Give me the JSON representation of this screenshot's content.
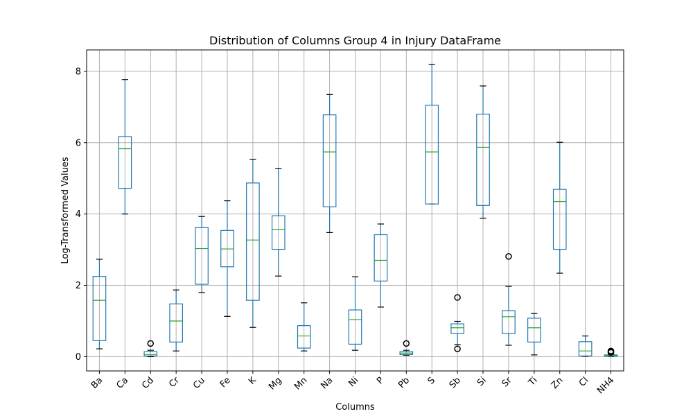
{
  "chart_data": {
    "type": "box",
    "title": "Distribution of Columns Group 4 in Injury DataFrame",
    "xlabel": "Columns",
    "ylabel": "Log-Transformed Values",
    "ylim": [
      -0.4,
      8.6
    ],
    "yticks": [
      0,
      2,
      4,
      6,
      8
    ],
    "grid": true,
    "categories": [
      "Ba",
      "Ca",
      "Cd",
      "Cr",
      "Cu",
      "Fe",
      "K",
      "Mg",
      "Mn",
      "Na",
      "Ni",
      "P",
      "Pb",
      "S",
      "Sb",
      "Si",
      "Sr",
      "Ti",
      "Zn",
      "Cl",
      "NH4"
    ],
    "boxes": [
      {
        "min": 0.22,
        "q1": 0.45,
        "median": 1.58,
        "q3": 2.25,
        "max": 2.73,
        "fliers": []
      },
      {
        "min": 4.0,
        "q1": 4.72,
        "median": 5.83,
        "q3": 6.17,
        "max": 7.77,
        "fliers": []
      },
      {
        "min": 0.0,
        "q1": 0.02,
        "median": 0.06,
        "q3": 0.14,
        "max": 0.18,
        "fliers": [
          0.37
        ]
      },
      {
        "min": 0.16,
        "q1": 0.41,
        "median": 1.0,
        "q3": 1.48,
        "max": 1.87,
        "fliers": []
      },
      {
        "min": 1.8,
        "q1": 2.03,
        "median": 3.03,
        "q3": 3.62,
        "max": 3.93,
        "fliers": []
      },
      {
        "min": 1.13,
        "q1": 2.52,
        "median": 3.02,
        "q3": 3.54,
        "max": 4.37,
        "fliers": []
      },
      {
        "min": 0.82,
        "q1": 1.58,
        "median": 3.27,
        "q3": 4.87,
        "max": 5.53,
        "fliers": []
      },
      {
        "min": 2.26,
        "q1": 3.01,
        "median": 3.56,
        "q3": 3.95,
        "max": 5.27,
        "fliers": []
      },
      {
        "min": 0.16,
        "q1": 0.24,
        "median": 0.58,
        "q3": 0.87,
        "max": 1.51,
        "fliers": []
      },
      {
        "min": 3.48,
        "q1": 4.2,
        "median": 5.74,
        "q3": 6.78,
        "max": 7.35,
        "fliers": []
      },
      {
        "min": 0.18,
        "q1": 0.35,
        "median": 1.04,
        "q3": 1.31,
        "max": 2.24,
        "fliers": []
      },
      {
        "min": 1.39,
        "q1": 2.12,
        "median": 2.7,
        "q3": 3.42,
        "max": 3.72,
        "fliers": []
      },
      {
        "min": 0.04,
        "q1": 0.06,
        "median": 0.1,
        "q3": 0.14,
        "max": 0.18,
        "fliers": [
          0.37
        ]
      },
      {
        "min": 4.28,
        "q1": 4.28,
        "median": 5.74,
        "q3": 7.05,
        "max": 8.19,
        "fliers": []
      },
      {
        "min": 0.34,
        "q1": 0.65,
        "median": 0.81,
        "q3": 0.92,
        "max": 0.99,
        "fliers": [
          1.66,
          0.22
        ]
      },
      {
        "min": 3.88,
        "q1": 4.24,
        "median": 5.87,
        "q3": 6.8,
        "max": 7.59,
        "fliers": []
      },
      {
        "min": 0.32,
        "q1": 0.65,
        "median": 1.12,
        "q3": 1.29,
        "max": 1.97,
        "fliers": [
          2.81
        ]
      },
      {
        "min": 0.05,
        "q1": 0.41,
        "median": 0.81,
        "q3": 1.08,
        "max": 1.21,
        "fliers": []
      },
      {
        "min": 2.34,
        "q1": 3.01,
        "median": 4.35,
        "q3": 4.69,
        "max": 6.01,
        "fliers": []
      },
      {
        "min": 0.01,
        "q1": 0.02,
        "median": 0.16,
        "q3": 0.42,
        "max": 0.58,
        "fliers": []
      },
      {
        "min": 0.0,
        "q1": 0.01,
        "median": 0.04,
        "q3": 0.05,
        "max": 0.07,
        "fliers": [
          0.14,
          0.12,
          0.16
        ]
      }
    ]
  }
}
